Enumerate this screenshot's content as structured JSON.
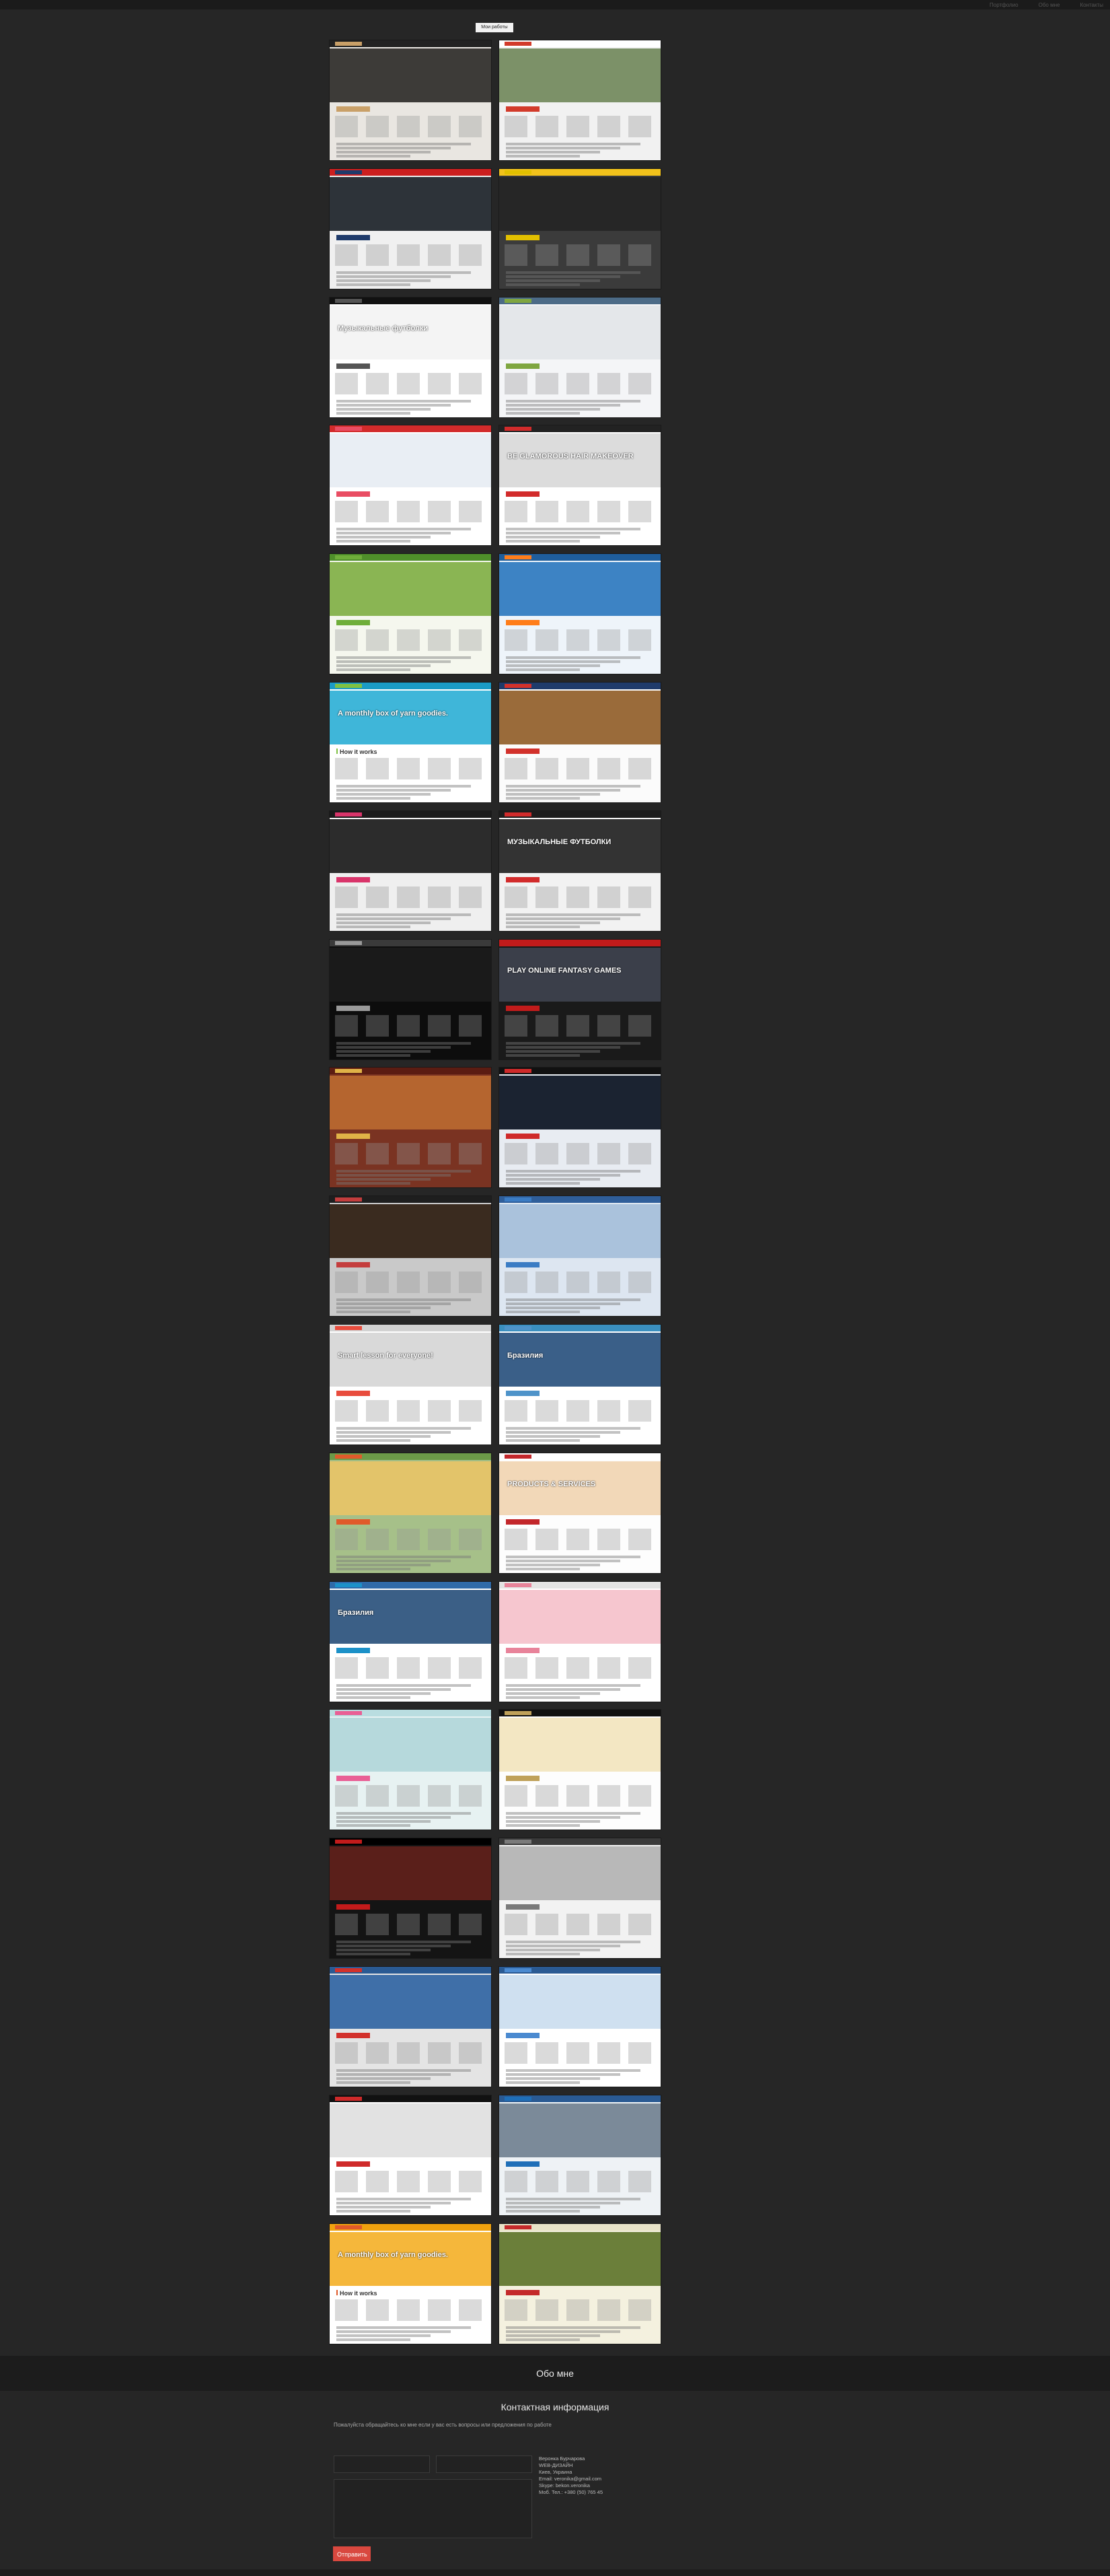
{
  "top_links": [
    "Портфолио",
    "Обо мне",
    "Контакты"
  ],
  "section_label": "Мои работы",
  "thumbs": [
    {
      "name": "portfolio-thumb-1",
      "bg": "#e9e6e1",
      "hero": "#3d3b38",
      "bar": "#222222",
      "accent": "#c9a068"
    },
    {
      "name": "portfolio-thumb-2",
      "bg": "#f1f1f1",
      "hero": "#7c9168",
      "bar": "#ffffff",
      "accent": "#d23b2b"
    },
    {
      "name": "portfolio-thumb-3",
      "bg": "#f0f0f0",
      "hero": "#2d3339",
      "bar": "#cc1f1f",
      "accent": "#1f3b6b"
    },
    {
      "name": "portfolio-thumb-4",
      "bg": "#3b3b3b",
      "hero": "#262626",
      "bar": "#f2c21b",
      "accent": "#e2c000"
    },
    {
      "name": "portfolio-thumb-5",
      "bg": "#ffffff",
      "hero": "#f4f4f4",
      "bar": "#111111",
      "accent": "#555555"
    },
    {
      "name": "portfolio-thumb-6",
      "bg": "#f4f5f7",
      "hero": "#e4e7ea",
      "bar": "#4c6b87",
      "accent": "#7fa640"
    },
    {
      "name": "portfolio-thumb-7",
      "bg": "#ffffff",
      "hero": "#e9eef4",
      "bar": "#d22b2b",
      "accent": "#e94d63"
    },
    {
      "name": "portfolio-thumb-8",
      "bg": "#ffffff",
      "hero": "#dcdcdc",
      "bar": "#222222",
      "accent": "#d22b2b"
    },
    {
      "name": "portfolio-thumb-9",
      "bg": "#f5f7ee",
      "hero": "#8ab553",
      "bar": "#4f8f2a",
      "accent": "#6fae3a"
    },
    {
      "name": "portfolio-thumb-10",
      "bg": "#eef4fa",
      "hero": "#3d83c4",
      "bar": "#1f5e9d",
      "accent": "#ff7d1a"
    },
    {
      "name": "portfolio-thumb-11",
      "bg": "#ffffff",
      "hero": "#3fb6d9",
      "bar": "#1b9bc6",
      "accent": "#7fc143"
    },
    {
      "name": "portfolio-thumb-12",
      "bg": "#fbfbfb",
      "hero": "#9a6b3a",
      "bar": "#1f3b6b",
      "accent": "#d2312b"
    },
    {
      "name": "portfolio-thumb-13",
      "bg": "#efefef",
      "hero": "#2c2c2c",
      "bar": "#1a1a1a",
      "accent": "#d9346a"
    },
    {
      "name": "portfolio-thumb-14",
      "bg": "#f2f2f2",
      "hero": "#333333",
      "bar": "#1d1d1d",
      "accent": "#d22b2b"
    },
    {
      "name": "portfolio-thumb-15",
      "bg": "#0d0d0d",
      "hero": "#1a1a1a",
      "bar": "#3a3a3a",
      "accent": "#999999"
    },
    {
      "name": "portfolio-thumb-16",
      "bg": "#1a1a1a",
      "hero": "#3b3f4a",
      "bar": "#c21b1b",
      "accent": "#c21b1b"
    },
    {
      "name": "portfolio-thumb-17",
      "bg": "#7a3322",
      "hero": "#b5652f",
      "bar": "#5b1c12",
      "accent": "#e0b347"
    },
    {
      "name": "portfolio-thumb-18",
      "bg": "#e8ecf2",
      "hero": "#1b2331",
      "bar": "#111111",
      "accent": "#cf2a2a"
    },
    {
      "name": "portfolio-thumb-19",
      "bg": "#c9c9c9",
      "hero": "#3a2b1f",
      "bar": "#1e1e1e",
      "accent": "#c43d3d"
    },
    {
      "name": "portfolio-thumb-20",
      "bg": "#dde6f1",
      "hero": "#aac2dc",
      "bar": "#2f5e9a",
      "accent": "#3b7cc4"
    },
    {
      "name": "portfolio-thumb-21",
      "bg": "#ffffff",
      "hero": "#d9d9d9",
      "bar": "#d2d2d2",
      "accent": "#e84c3d"
    },
    {
      "name": "portfolio-thumb-22",
      "bg": "#ffffff",
      "hero": "#3a5f88",
      "bar": "#3a8fbf",
      "accent": "#4e93c9"
    },
    {
      "name": "portfolio-thumb-23",
      "bg": "#a6c089",
      "hero": "#e3c46a",
      "bar": "#6c9a48",
      "accent": "#e05a2a"
    },
    {
      "name": "portfolio-thumb-24",
      "bg": "#fdfdfd",
      "hero": "#f2d8b8",
      "bar": "#ffffff",
      "accent": "#c3272b"
    },
    {
      "name": "portfolio-thumb-25",
      "bg": "#ffffff",
      "hero": "#3b5f86",
      "bar": "#2f6aa8",
      "accent": "#1c91c8"
    },
    {
      "name": "portfolio-thumb-26",
      "bg": "#ffffff",
      "hero": "#f6c6cf",
      "bar": "#e3e3e3",
      "accent": "#e8839a"
    },
    {
      "name": "portfolio-thumb-27",
      "bg": "#e7f2f2",
      "hero": "#b6d9dc",
      "bar": "#b9dde0",
      "accent": "#e95f95"
    },
    {
      "name": "portfolio-thumb-28",
      "bg": "#fdfdfd",
      "hero": "#f3e7c3",
      "bar": "#111111",
      "accent": "#bfa15a"
    },
    {
      "name": "portfolio-thumb-29",
      "bg": "#141414",
      "hero": "#5a1f1a",
      "bar": "#000000",
      "accent": "#c21b1b"
    },
    {
      "name": "portfolio-thumb-30",
      "bg": "#f2f2f2",
      "hero": "#b8b8b8",
      "bar": "#3a3a3a",
      "accent": "#7a7a7a"
    },
    {
      "name": "portfolio-thumb-31",
      "bg": "#e4e4e4",
      "hero": "#3f6fa8",
      "bar": "#2a5a93",
      "accent": "#d2312b"
    },
    {
      "name": "portfolio-thumb-32",
      "bg": "#ffffff",
      "hero": "#cfe0f0",
      "bar": "#2a5a93",
      "accent": "#4b8ad0"
    },
    {
      "name": "portfolio-thumb-33",
      "bg": "#ffffff",
      "hero": "#e2e2e2",
      "bar": "#111111",
      "accent": "#cf2a2a"
    },
    {
      "name": "portfolio-thumb-34",
      "bg": "#eef2f5",
      "hero": "#7b8a99",
      "bar": "#2a5a93",
      "accent": "#1f6fb8"
    },
    {
      "name": "portfolio-thumb-35",
      "bg": "#ffffff",
      "hero": "#f5b73b",
      "bar": "#f0a20e",
      "accent": "#e05a2a"
    },
    {
      "name": "portfolio-thumb-36",
      "bg": "#f4f1df",
      "hero": "#6b7f3a",
      "bar": "#e8e3c7",
      "accent": "#c42a2a"
    }
  ],
  "thumb_texts": {
    "t5": "Музыкальные футболки",
    "t8": "BE GLAMOROUS HAIR MAKEOVER",
    "t11": "A monthly box of yarn goodies.",
    "t11b": "How it works",
    "t14": "МУЗЫКАЛЬНЫЕ ФУТБОЛКИ",
    "t16": "PLAY ONLINE FANTASY GAMES",
    "t21": "Smart lesson for everyone!",
    "t22": "Бразилия",
    "t24": "PRODUCTS & SERVICES",
    "t25": "Бразилия",
    "t35": "A monthly box of yarn goodies.",
    "t35b": "How it works"
  },
  "about": {
    "title": "Обо мне"
  },
  "contact": {
    "title": "Контактная информация",
    "subtitle": "Пожалуйста обращайтесь ко мне если у вас есть вопросы или предложения по работе",
    "name_placeholder": "",
    "email_placeholder": "",
    "message_placeholder": "",
    "send_label": "Отправить",
    "info": {
      "line1": "Веронка Бурчарова",
      "line2": "WEB-ДИЗАЙН",
      "line3": "Киев, Украина",
      "line4": "Email: veronika@gmail.com",
      "line5": "Skype: bekon.veronika",
      "line6": "Моб. Тел.: +380 (50) 765 45"
    }
  }
}
